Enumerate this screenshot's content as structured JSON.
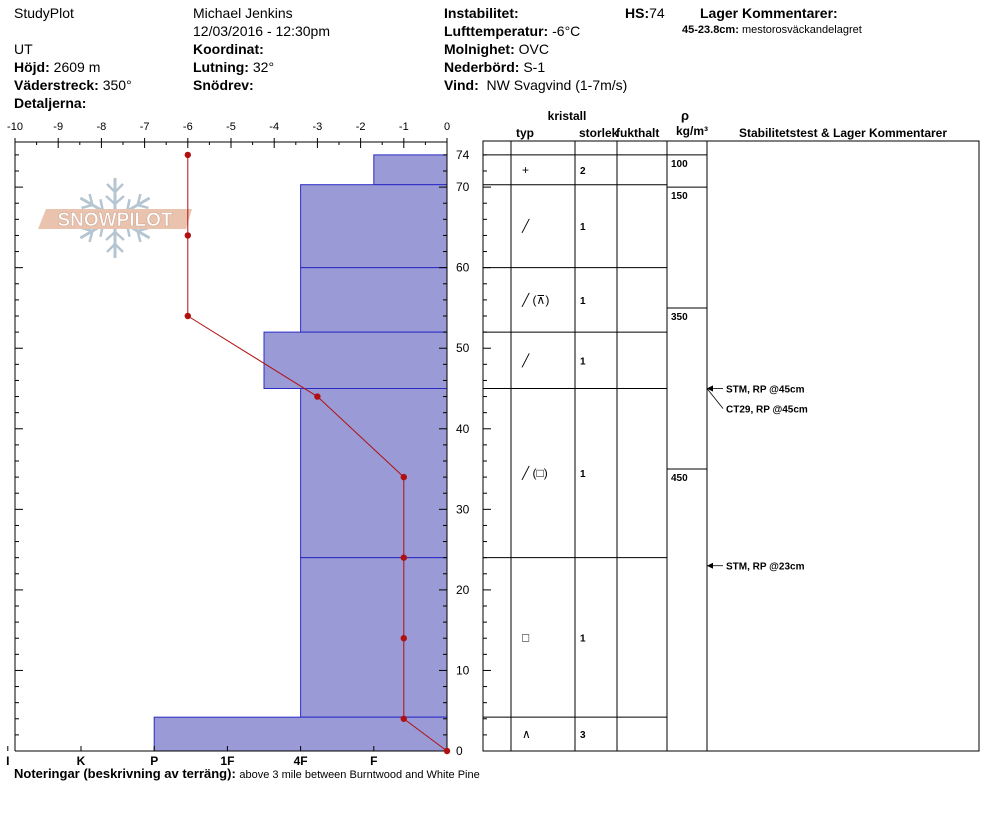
{
  "header": {
    "app_name": "StudyPlot",
    "observer": "Michael Jenkins",
    "datetime": "12/03/2016 - 12:30pm",
    "location": "UT",
    "elevation_label": "Höjd:",
    "elevation": "2609 m",
    "aspect_label": "Väderstreck:",
    "aspect": "350°",
    "details_label": "Detaljerna:",
    "coordinate_label": "Koordinat:",
    "slope_label": "Lutning:",
    "slope": "32°",
    "wind_loading_label": "Snödrev:",
    "instability_label": "Instabilitet:",
    "air_temp_label": "Lufttemperatur:",
    "air_temp": "-6°C",
    "sky_label": "Molnighet:",
    "sky": "OVC",
    "precip_label": "Nederbörd:",
    "precip": "S-1",
    "wind_label": "Vind:",
    "wind": "NW Svagvind (1-7m/s)",
    "hs_label": "HS:",
    "hs": "74",
    "layer_comments_label": "Lager Kommentarer:",
    "layer_comment_range": "45-23.8cm:",
    "layer_comment_text": "mestorosväckandelagret"
  },
  "logo_text": "SNOWPILOT",
  "columns": {
    "crystal": "kristall",
    "type": "typ",
    "size": "storlek",
    "moisture": "fukthalt",
    "density_symbol": "ρ",
    "density_unit": "kg/m³",
    "stability": "Stabilitetstest & Lager Kommentarer"
  },
  "footer": {
    "notes_label": "Noteringar (beskrivning av terräng):",
    "notes": "above 3 mile between Burntwood and White Pine"
  },
  "chart_data": {
    "type": "snow_profile",
    "temp_axis": {
      "ticks": [
        -10,
        -9,
        -8,
        -7,
        -6,
        -5,
        -4,
        -3,
        -2,
        -1,
        0
      ],
      "range": [
        -10,
        0
      ]
    },
    "depth_axis": {
      "ticks": [
        0,
        10,
        20,
        30,
        40,
        50,
        60,
        70
      ],
      "top_label": "74",
      "range": [
        0,
        74
      ]
    },
    "hardness_scale": [
      "I",
      "K",
      "P",
      "1F",
      "4F",
      "F"
    ],
    "hardness_scale_values": {
      "I": 6,
      "K": 5,
      "P": 4,
      "1F": 3,
      "4F": 2,
      "F": 1
    },
    "temperature_profile": [
      {
        "depth": 74,
        "temp": -6
      },
      {
        "depth": 64,
        "temp": -6
      },
      {
        "depth": 54,
        "temp": -6
      },
      {
        "depth": 44,
        "temp": -3
      },
      {
        "depth": 34,
        "temp": -1
      },
      {
        "depth": 24,
        "temp": -1
      },
      {
        "depth": 14,
        "temp": -1
      },
      {
        "depth": 4,
        "temp": -1
      },
      {
        "depth": 0,
        "temp": 0
      }
    ],
    "layers": [
      {
        "top": 74,
        "bottom": 70.3,
        "hardness": 1.0,
        "grain": "+",
        "size": "2"
      },
      {
        "top": 70.3,
        "bottom": 60,
        "hardness": 2.0,
        "grain": "╱",
        "size": "1"
      },
      {
        "top": 60,
        "bottom": 52,
        "hardness": 2.0,
        "grain": "╱ (⊼)",
        "size": "1"
      },
      {
        "top": 52,
        "bottom": 45,
        "hardness": 2.5,
        "grain": "╱",
        "size": "1"
      },
      {
        "top": 45,
        "bottom": 24,
        "hardness": 2.0,
        "grain": "╱ (□)",
        "size": "1"
      },
      {
        "top": 24,
        "bottom": 4.2,
        "hardness": 2.0,
        "grain": "□",
        "size": "1"
      },
      {
        "top": 4.2,
        "bottom": 0,
        "hardness": 4.0,
        "grain": "∧",
        "size": "3"
      }
    ],
    "densities": [
      {
        "depth": 74,
        "value": "100"
      },
      {
        "depth": 70,
        "value": "150"
      },
      {
        "depth": 55,
        "value": "350"
      },
      {
        "depth": 35,
        "value": "450"
      }
    ],
    "stability_tests": [
      {
        "depth": 45,
        "label": "STM, RP @45cm"
      },
      {
        "depth": 45,
        "label": "CT29, RP @45cm"
      },
      {
        "depth": 23,
        "label": "STM, RP @23cm"
      }
    ]
  }
}
